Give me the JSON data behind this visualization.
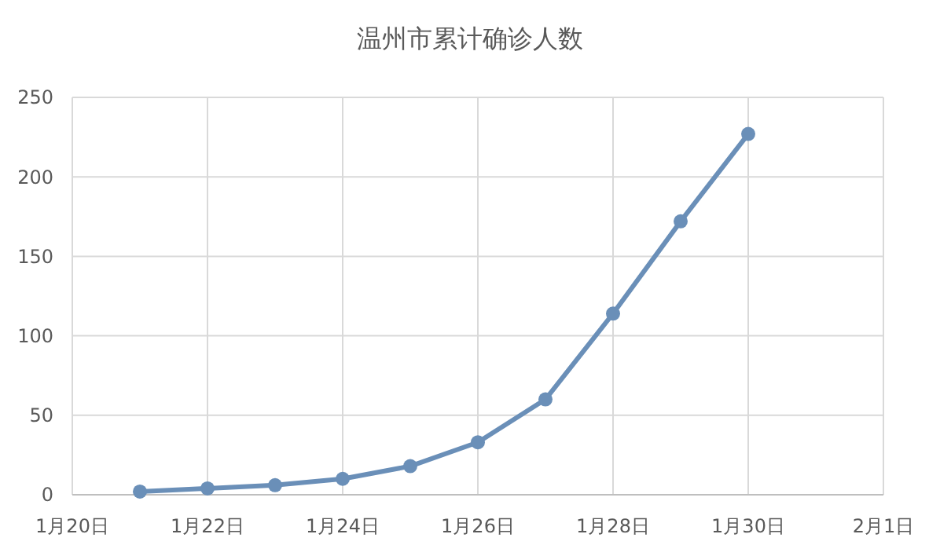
{
  "chart_data": {
    "type": "line",
    "title": "温州市累计确诊人数",
    "x": [
      "--01-21",
      "--01-22",
      "--01-23",
      "--01-24",
      "--01-25",
      "--01-26",
      "--01-27",
      "--01-28",
      "--01-29",
      "--01-30"
    ],
    "series": [
      {
        "color": "#6a8fb8",
        "values": [
          2,
          4,
          6,
          10,
          18,
          33,
          60,
          114,
          172,
          227
        ]
      }
    ],
    "xlim": [
      "--01-20",
      "--02-01"
    ],
    "xticks": [
      {
        "value": "--01-20",
        "label": "1月20日"
      },
      {
        "value": "--01-22",
        "label": "1月22日"
      },
      {
        "value": "--01-24",
        "label": "1月24日"
      },
      {
        "value": "--01-26",
        "label": "1月26日"
      },
      {
        "value": "--01-28",
        "label": "1月28日"
      },
      {
        "value": "--01-30",
        "label": "1月30日"
      },
      {
        "value": "--02-01",
        "label": "2月1日"
      }
    ],
    "ylim": [
      0,
      250
    ],
    "yticks": [
      0,
      50,
      100,
      150,
      200,
      250
    ],
    "grid": true,
    "marker": "circle",
    "line_style": "solid"
  }
}
